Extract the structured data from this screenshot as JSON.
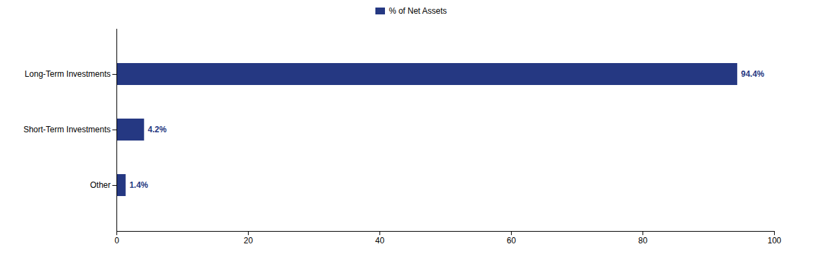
{
  "chart_data": {
    "type": "bar",
    "orientation": "horizontal",
    "categories": [
      "Long-Term Investments",
      "Short-Term Investments",
      "Other"
    ],
    "series": [
      {
        "name": "% of Net Assets",
        "color": "#253882",
        "values": [
          94.4,
          4.2,
          1.4
        ],
        "value_labels": [
          "94.4%",
          "4.2%",
          "1.4%"
        ]
      }
    ],
    "xlim": [
      0,
      100
    ],
    "xticks": [
      0,
      20,
      40,
      60,
      80,
      100
    ],
    "grid": false,
    "data_labels": true,
    "legend": "top"
  }
}
